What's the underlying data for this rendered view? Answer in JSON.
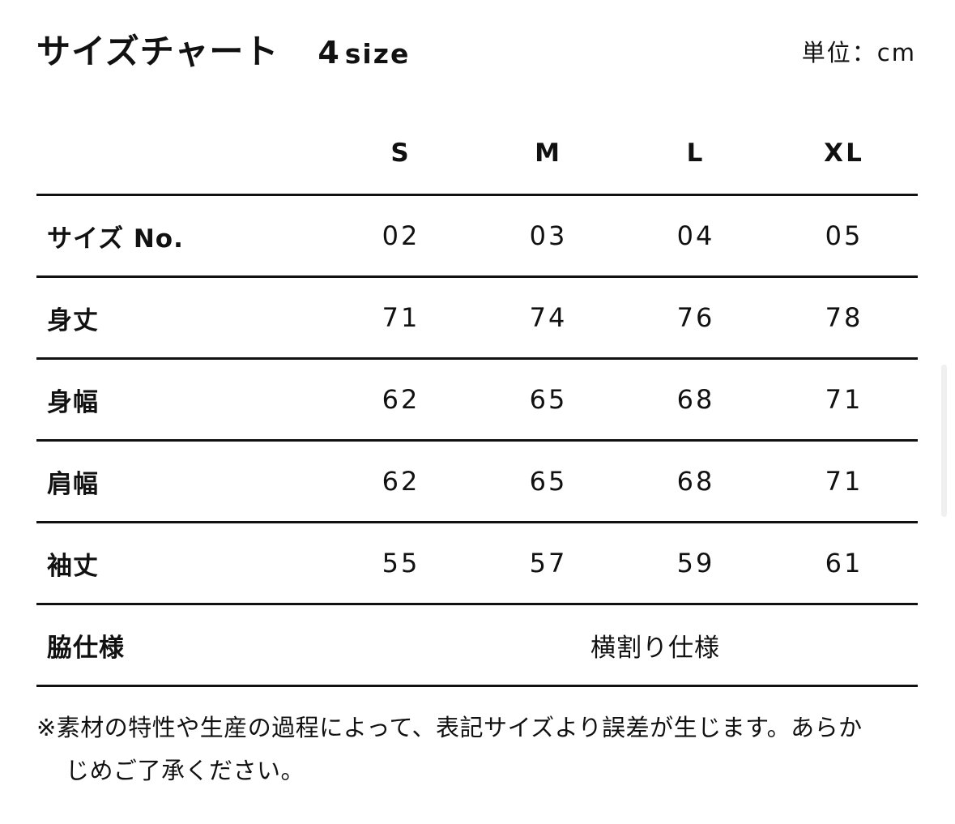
{
  "title": "サイズチャート",
  "size_count_number": "4",
  "size_count_label": "size",
  "unit": "単位：cm",
  "columns": [
    "S",
    "M",
    "L",
    "XL"
  ],
  "rows": [
    {
      "label": "サイズ No.",
      "values": [
        "02",
        "03",
        "04",
        "05"
      ]
    },
    {
      "label": "身丈",
      "values": [
        "71",
        "74",
        "76",
        "78"
      ]
    },
    {
      "label": "身幅",
      "values": [
        "62",
        "65",
        "68",
        "71"
      ]
    },
    {
      "label": "肩幅",
      "values": [
        "62",
        "65",
        "68",
        "71"
      ]
    },
    {
      "label": "袖丈",
      "values": [
        "55",
        "57",
        "59",
        "61"
      ]
    }
  ],
  "side_spec": {
    "label": "脇仕様",
    "value": "横割り仕様"
  },
  "note_line1": "※素材の特性や生産の過程によって、表記サイズより誤差が生じます。あらか",
  "note_line2": "じめご了承ください。"
}
